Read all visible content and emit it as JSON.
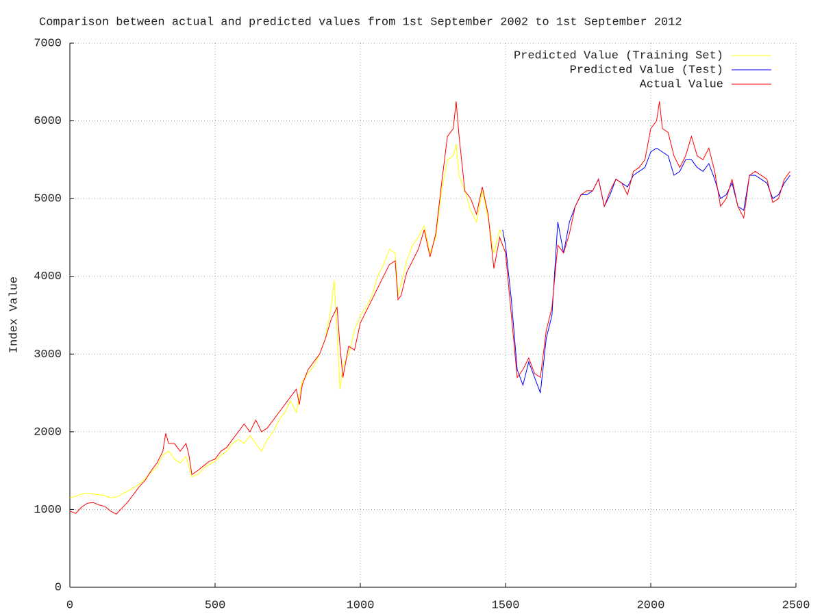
{
  "chart_data": {
    "type": "line",
    "title": "Comparison between actual and predicted values from 1st September 2002 to 1st September 2012",
    "y_label": "Index Value",
    "xlim": [
      0,
      2500
    ],
    "xticks": [
      0,
      500,
      1000,
      1500,
      2000,
      2500
    ],
    "ylim": [
      0,
      7000
    ],
    "yticks": [
      0,
      1000,
      2000,
      3000,
      4000,
      5000,
      6000,
      7000
    ],
    "grid": true,
    "legend": "top-right",
    "series": [
      {
        "name": "Predicted Value (Training Set)",
        "color": "#ffff00",
        "x": [
          0,
          20,
          40,
          60,
          80,
          100,
          120,
          140,
          160,
          180,
          200,
          220,
          240,
          260,
          280,
          300,
          320,
          340,
          360,
          380,
          400,
          420,
          440,
          460,
          480,
          500,
          520,
          540,
          560,
          580,
          600,
          620,
          640,
          660,
          680,
          700,
          720,
          740,
          760,
          780,
          800,
          820,
          840,
          860,
          880,
          900,
          910,
          920,
          930,
          940,
          960,
          980,
          1000,
          1020,
          1040,
          1060,
          1080,
          1100,
          1120,
          1130,
          1140,
          1160,
          1180,
          1200,
          1220,
          1240,
          1260,
          1280,
          1300,
          1320,
          1330,
          1340,
          1360,
          1380,
          1400,
          1420,
          1440,
          1460,
          1480,
          1500
        ],
        "values": [
          1150,
          1170,
          1200,
          1210,
          1200,
          1190,
          1180,
          1150,
          1160,
          1200,
          1240,
          1280,
          1330,
          1400,
          1480,
          1550,
          1700,
          1750,
          1650,
          1600,
          1680,
          1420,
          1450,
          1530,
          1580,
          1620,
          1700,
          1750,
          1850,
          1900,
          1850,
          1950,
          1850,
          1750,
          1900,
          2000,
          2150,
          2250,
          2400,
          2250,
          2650,
          2750,
          2850,
          3000,
          3200,
          3600,
          3950,
          3300,
          2550,
          2850,
          3000,
          3300,
          3500,
          3600,
          3750,
          4000,
          4150,
          4350,
          4300,
          3750,
          3900,
          4200,
          4400,
          4500,
          4650,
          4300,
          4500,
          5100,
          5500,
          5550,
          5700,
          5300,
          5100,
          4850,
          4700,
          5100,
          4750,
          4300,
          4600,
          4450
        ]
      },
      {
        "name": "Predicted Value (Test)",
        "color": "#0000ff",
        "x": [
          1490,
          1500,
          1520,
          1540,
          1560,
          1580,
          1600,
          1620,
          1640,
          1660,
          1680,
          1700,
          1720,
          1740,
          1760,
          1780,
          1800,
          1820,
          1840,
          1860,
          1880,
          1900,
          1920,
          1940,
          1960,
          1980,
          2000,
          2020,
          2040,
          2060,
          2080,
          2100,
          2120,
          2140,
          2160,
          2180,
          2200,
          2220,
          2240,
          2260,
          2280,
          2300,
          2320,
          2340,
          2360,
          2380,
          2400,
          2420,
          2440,
          2460,
          2480
        ],
        "values": [
          4600,
          4400,
          3700,
          2800,
          2600,
          2900,
          2700,
          2500,
          3200,
          3500,
          4700,
          4300,
          4700,
          4900,
          5050,
          5050,
          5100,
          5250,
          4900,
          5050,
          5250,
          5200,
          5150,
          5300,
          5350,
          5400,
          5600,
          5650,
          5600,
          5550,
          5300,
          5350,
          5500,
          5500,
          5400,
          5350,
          5450,
          5250,
          5000,
          5050,
          5200,
          4900,
          4850,
          5300,
          5300,
          5250,
          5200,
          5000,
          5050,
          5200,
          5300
        ]
      },
      {
        "name": "Actual Value",
        "color": "#ff0000",
        "x": [
          0,
          20,
          40,
          60,
          80,
          100,
          120,
          140,
          160,
          180,
          200,
          220,
          240,
          260,
          280,
          300,
          320,
          330,
          340,
          360,
          380,
          400,
          410,
          420,
          440,
          460,
          480,
          500,
          520,
          540,
          560,
          580,
          600,
          620,
          640,
          660,
          680,
          700,
          720,
          740,
          760,
          780,
          790,
          800,
          820,
          840,
          860,
          880,
          900,
          920,
          930,
          940,
          960,
          980,
          1000,
          1020,
          1040,
          1060,
          1080,
          1100,
          1120,
          1130,
          1140,
          1160,
          1180,
          1200,
          1220,
          1240,
          1260,
          1280,
          1300,
          1320,
          1330,
          1340,
          1360,
          1380,
          1400,
          1420,
          1440,
          1460,
          1480,
          1500,
          1520,
          1540,
          1560,
          1580,
          1600,
          1620,
          1640,
          1660,
          1680,
          1700,
          1720,
          1740,
          1760,
          1780,
          1800,
          1820,
          1840,
          1860,
          1880,
          1900,
          1920,
          1940,
          1960,
          1980,
          2000,
          2020,
          2030,
          2040,
          2060,
          2080,
          2100,
          2120,
          2140,
          2160,
          2180,
          2200,
          2220,
          2240,
          2260,
          2280,
          2300,
          2320,
          2340,
          2360,
          2380,
          2400,
          2420,
          2440,
          2460,
          2480
        ],
        "values": [
          980,
          950,
          1030,
          1080,
          1090,
          1060,
          1040,
          980,
          940,
          1020,
          1100,
          1200,
          1300,
          1380,
          1500,
          1600,
          1750,
          1980,
          1850,
          1850,
          1750,
          1850,
          1700,
          1450,
          1500,
          1560,
          1620,
          1650,
          1750,
          1800,
          1900,
          2000,
          2100,
          2000,
          2150,
          2000,
          2050,
          2150,
          2250,
          2350,
          2450,
          2550,
          2350,
          2600,
          2800,
          2900,
          3000,
          3200,
          3450,
          3600,
          3100,
          2700,
          3100,
          3050,
          3400,
          3550,
          3700,
          3850,
          4000,
          4150,
          4200,
          3700,
          3750,
          4050,
          4200,
          4350,
          4600,
          4250,
          4550,
          5200,
          5800,
          5900,
          6250,
          5800,
          5100,
          5000,
          4800,
          5150,
          4800,
          4100,
          4500,
          4300,
          3500,
          2700,
          2800,
          2950,
          2750,
          2700,
          3300,
          3600,
          4400,
          4300,
          4550,
          4900,
          5050,
          5100,
          5100,
          5250,
          4900,
          5100,
          5250,
          5200,
          5050,
          5350,
          5400,
          5500,
          5900,
          6000,
          6250,
          5900,
          5850,
          5550,
          5400,
          5550,
          5800,
          5550,
          5500,
          5650,
          5350,
          4900,
          5000,
          5250,
          4900,
          4750,
          5300,
          5350,
          5300,
          5250,
          4950,
          5000,
          5250,
          5350
        ]
      }
    ]
  }
}
